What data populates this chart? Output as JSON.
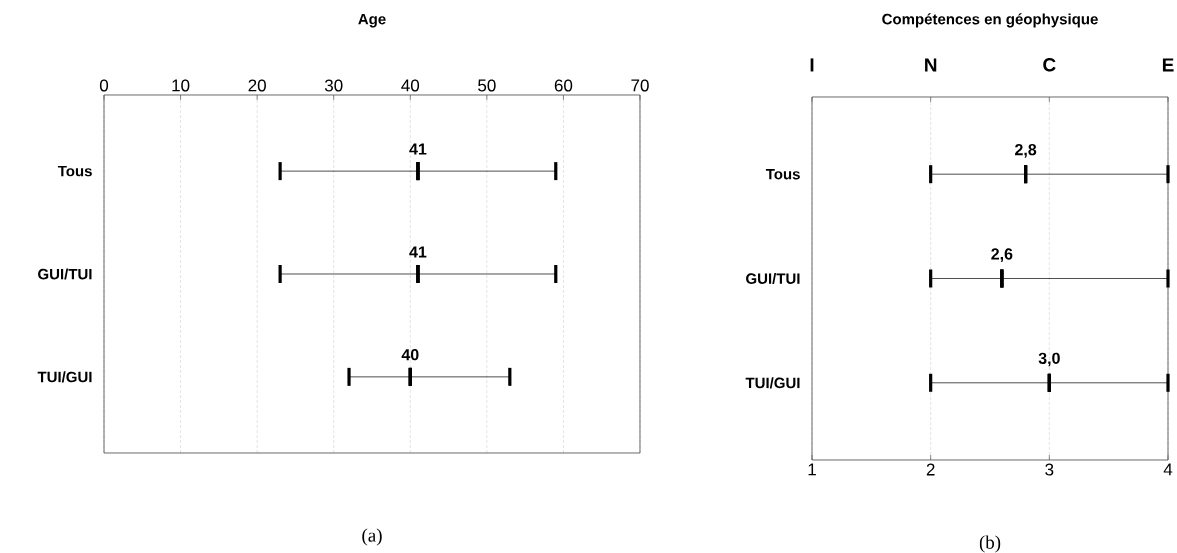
{
  "chart_data": [
    {
      "type": "box",
      "orientation": "horizontal",
      "title": "Age",
      "categories": [
        "Tous",
        "GUI/TUI",
        "TUI/GUI"
      ],
      "boxes": [
        {
          "low": 23,
          "q1": 41,
          "median": 41,
          "q3": 41,
          "high": 59
        },
        {
          "low": 23,
          "q1": 41,
          "median": 41,
          "q3": 41,
          "high": 59
        },
        {
          "low": 32,
          "q1": 40,
          "median": 40,
          "q3": 40,
          "high": 53
        }
      ],
      "xlim": [
        0,
        70
      ],
      "xticks": [
        0,
        10,
        20,
        30,
        40,
        50,
        60,
        70
      ],
      "grid": "x",
      "annotations": [
        {
          "text": "41",
          "x": 41,
          "y": "Tous"
        },
        {
          "text": "41",
          "x": 41,
          "y": "GUI/TUI"
        },
        {
          "text": "40",
          "x": 40,
          "y": "TUI/GUI"
        },
        "(a)"
      ]
    },
    {
      "type": "box",
      "orientation": "horizontal",
      "title": "Compétences en géophysique",
      "categories": [
        "Tous",
        "GUI/TUI",
        "TUI/GUI"
      ],
      "boxes": [
        {
          "low": 2,
          "q1": 2.8,
          "median": 2.8,
          "q3": 2.8,
          "high": 4
        },
        {
          "low": 2,
          "q1": 2.6,
          "median": 2.6,
          "q3": 2.6,
          "high": 4
        },
        {
          "low": 2,
          "q1": 3.0,
          "median": 3.0,
          "q3": 3.0,
          "high": 4
        }
      ],
      "xlim": [
        1,
        4
      ],
      "xticks": [
        1,
        2,
        3,
        4
      ],
      "grid": "x",
      "annotations": [
        {
          "text": "2,8",
          "x": 2.8,
          "y": "Tous"
        },
        {
          "text": "2,6",
          "x": 2.6,
          "y": "GUI/TUI"
        },
        {
          "text": "3,0",
          "x": 3.0,
          "y": "TUI/GUI"
        },
        "I",
        "N",
        "C",
        "E",
        "(b)"
      ]
    }
  ]
}
